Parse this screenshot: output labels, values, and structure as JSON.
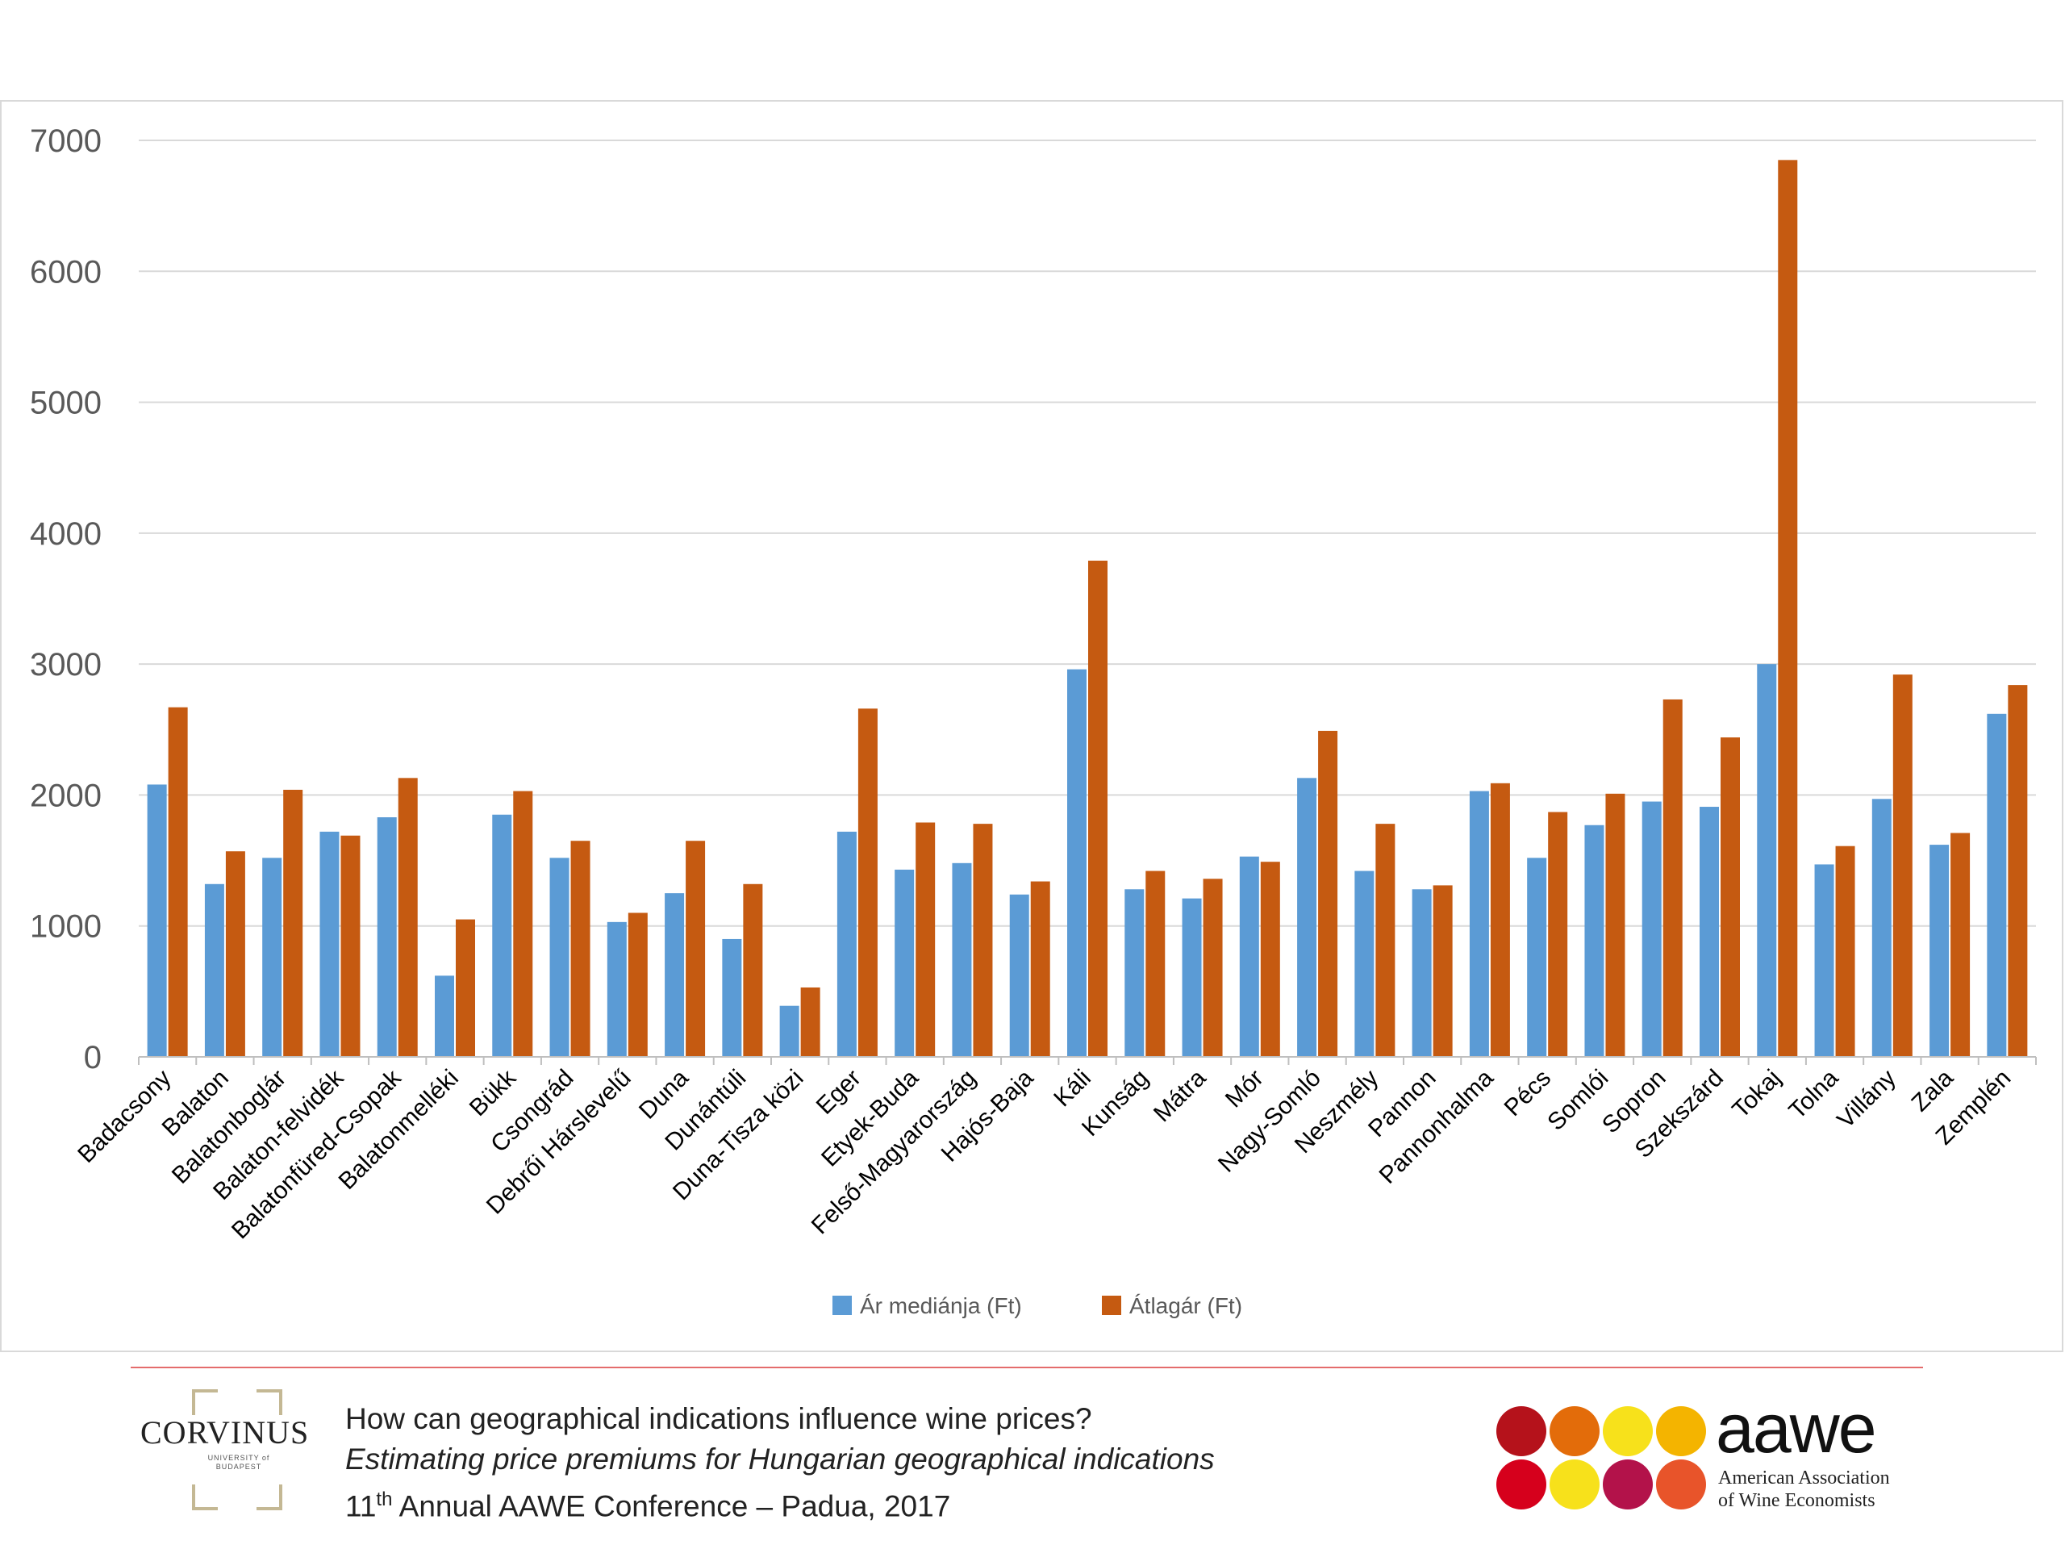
{
  "chart_data": {
    "type": "bar",
    "title": "",
    "xlabel": "",
    "ylabel": "",
    "ylim": [
      0,
      7000
    ],
    "yticks": [
      0,
      1000,
      2000,
      3000,
      4000,
      5000,
      6000,
      7000
    ],
    "grid": true,
    "legend_position": "bottom",
    "categories": [
      "Badacsony",
      "Balaton",
      "Balatonboglár",
      "Balaton-felvidék",
      "Balatonfüred-Csopak",
      "Balatonmelléki",
      "Bükk",
      "Csongrád",
      "Debrői Hárslevelű",
      "Duna",
      "Dunántúli",
      "Duna-Tisza közi",
      "Eger",
      "Etyek-Buda",
      "Felső-Magyarország",
      "Hajós-Baja",
      "Káli",
      "Kunság",
      "Mátra",
      "Mór",
      "Nagy-Somló",
      "Neszmély",
      "Pannon",
      "Pannonhalma",
      "Pécs",
      "Somlói",
      "Sopron",
      "Szekszárd",
      "Tokaj",
      "Tolna",
      "Villány",
      "Zala",
      "Zemplén"
    ],
    "series": [
      {
        "name": "Ár mediánja (Ft)",
        "color": "#5b9bd5",
        "values": [
          2080,
          1320,
          1520,
          1720,
          1830,
          620,
          1850,
          1520,
          1030,
          1250,
          900,
          390,
          1720,
          1430,
          1480,
          1240,
          2960,
          1280,
          1210,
          1530,
          2130,
          1420,
          1280,
          2030,
          1520,
          1770,
          1950,
          1910,
          3000,
          1470,
          1970,
          1620,
          2620
        ]
      },
      {
        "name": "Átlagár (Ft)",
        "color": "#c55a11",
        "values": [
          2670,
          1570,
          2040,
          1690,
          2130,
          1050,
          2030,
          1650,
          1100,
          1650,
          1320,
          530,
          2660,
          1790,
          1780,
          1340,
          3790,
          1420,
          1360,
          1490,
          2490,
          1780,
          1310,
          2090,
          1870,
          2010,
          2730,
          2440,
          6850,
          1610,
          2920,
          1710,
          2840
        ]
      }
    ]
  },
  "footer": {
    "title": "How can geographical indications influence wine prices?",
    "subtitle": "Estimating price premiums for Hungarian geographical indications",
    "conference_prefix": "11",
    "conference_sup": "th",
    "conference_rest": " Annual AAWE Conference – Padua, 2017"
  },
  "logos": {
    "corvinus_name": "CORVINUS",
    "corvinus_sub_1": "UNIVERSITY of",
    "corvinus_sub_2": "BUDAPEST",
    "aawe_wordmark": "aawe",
    "aawe_tagline_1": "American Association",
    "aawe_tagline_2": "of Wine Economists",
    "aawe_dot_colors": [
      "#b5121b",
      "#e36c0a",
      "#f7e11b",
      "#f4b400",
      "#d6001c",
      "#f7e11b",
      "#b3124a",
      "#e8542a"
    ]
  },
  "colors": {
    "grid": "#d9d9d9",
    "axis": "#bfbfbf",
    "footer_rule": "#e46c6c"
  }
}
